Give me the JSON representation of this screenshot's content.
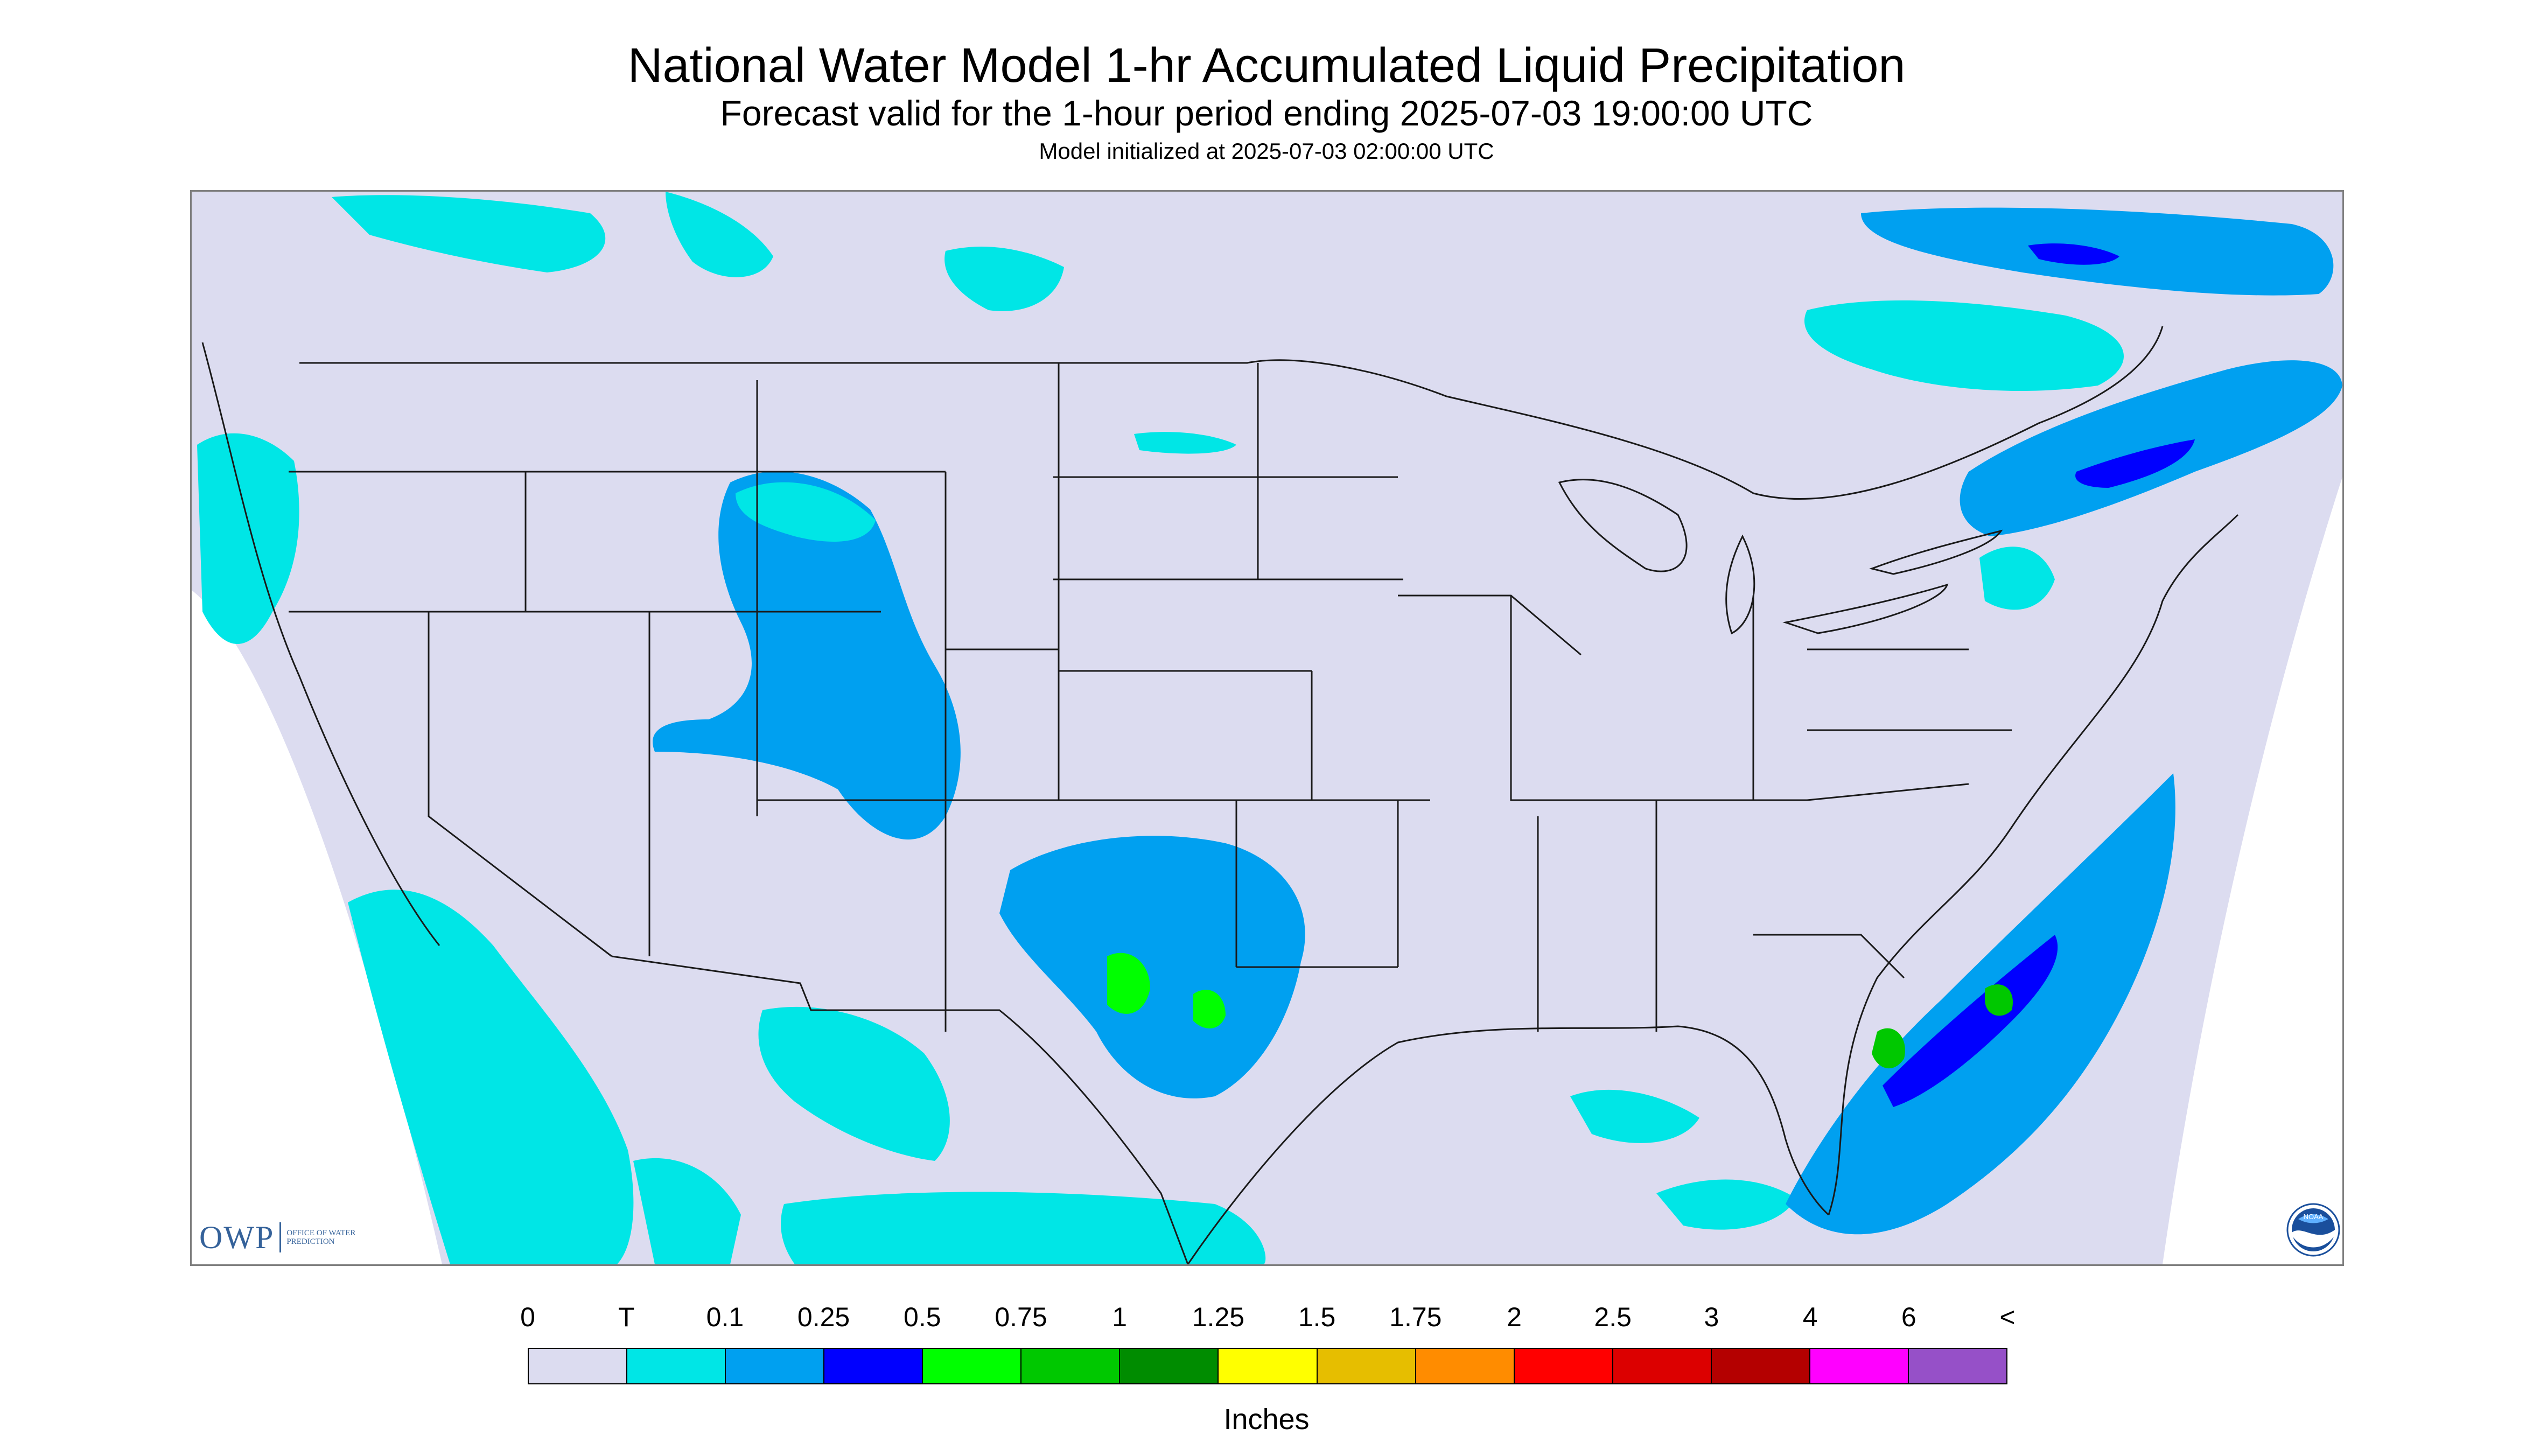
{
  "header": {
    "title": "National Water Model 1-hr Accumulated Liquid Precipitation",
    "subtitle": "Forecast valid for the 1-hour period ending 2025-07-03 19:00:00 UTC",
    "init": "Model initialized at 2025-07-03 02:00:00 UTC"
  },
  "map": {
    "domain_color": "#dcdcf0",
    "background_color": "#ffffff",
    "boundary_color": "#1a1a1a",
    "precip_regions": [
      {
        "area": "pacific-northwest-coast",
        "level": "T"
      },
      {
        "area": "california-offshore",
        "level": "T"
      },
      {
        "area": "idaho-utah-colorado",
        "level": "0.1"
      },
      {
        "area": "new-mexico-texas",
        "level": "0.1"
      },
      {
        "area": "central-texas",
        "level": "0.5"
      },
      {
        "area": "southeast-atlantic-offshore",
        "level": "0.5"
      },
      {
        "area": "florida-east-coast",
        "level": "0.75"
      },
      {
        "area": "quebec-new-england",
        "level": "0.25"
      },
      {
        "area": "ontario-north",
        "level": "0.25"
      },
      {
        "area": "gulf-of-mexico",
        "level": "T"
      },
      {
        "area": "northern-mexico",
        "level": "T"
      },
      {
        "area": "montana-canada",
        "level": "T"
      }
    ]
  },
  "logos": {
    "owp_mark": "OWP",
    "owp_text": "OFFICE OF WATER PREDICTION",
    "owp_color": "#35629a",
    "noaa_text": "NOAA",
    "noaa_icon": "noaa-logo-icon"
  },
  "legend": {
    "units": "Inches",
    "labels": [
      "0",
      "T",
      "0.1",
      "0.25",
      "0.5",
      "0.75",
      "1",
      "1.25",
      "1.5",
      "1.75",
      "2",
      "2.5",
      "3",
      "4",
      "6",
      "<"
    ],
    "colors": [
      "#dcdcf0",
      "#00e6e6",
      "#00a0f0",
      "#0000ff",
      "#00ff00",
      "#00c800",
      "#008c00",
      "#ffff00",
      "#e6be00",
      "#ff8c00",
      "#ff0000",
      "#dc0000",
      "#b40000",
      "#ff00ff",
      "#9650c8"
    ]
  }
}
